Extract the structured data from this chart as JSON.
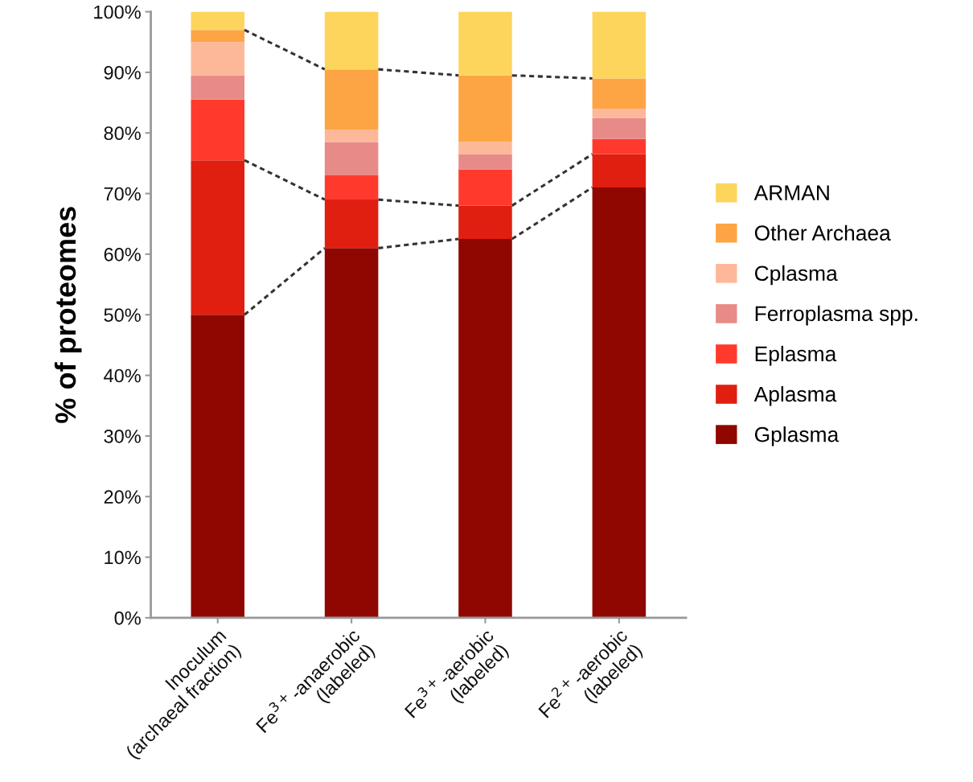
{
  "chart_data": {
    "type": "bar",
    "stacked": true,
    "ylabel": "% of proteomes",
    "categories": [
      "Inoculum\n(archaeal fraction)",
      "Fe$^{3+}$-anaerobic\n(labeled)",
      "Fe$^{3+}$-aerobic\n(labeled)",
      "Fe$^{2+}$-aerobic\n(labeled)"
    ],
    "series": [
      {
        "name": "Gplasma",
        "color": "#8f0700",
        "values": [
          50,
          61,
          62.5,
          71
        ]
      },
      {
        "name": "Aplasma",
        "color": "#e01f10",
        "values": [
          25.5,
          8,
          5.5,
          5.5
        ]
      },
      {
        "name": "Eplasma",
        "color": "#ff3a2d",
        "values": [
          10,
          4,
          6,
          2.5
        ]
      },
      {
        "name": "Ferroplasma spp.",
        "color": "#e88b88",
        "values": [
          4,
          5.5,
          2.5,
          3.5
        ]
      },
      {
        "name": "Cplasma",
        "color": "#fdb89a",
        "values": [
          5.5,
          2,
          2,
          1.5
        ]
      },
      {
        "name": "Other Archaea",
        "color": "#fda544",
        "values": [
          2,
          10,
          11,
          5
        ]
      },
      {
        "name": "ARMAN",
        "color": "#fdd55c",
        "values": [
          3,
          9.5,
          10.5,
          11
        ]
      }
    ],
    "ylim": [
      0,
      100
    ],
    "yticks": [
      {
        "value": 0,
        "label": "0%"
      },
      {
        "value": 10,
        "label": "10%"
      },
      {
        "value": 20,
        "label": "20%"
      },
      {
        "value": 30,
        "label": "30%"
      },
      {
        "value": 40,
        "label": "40%"
      },
      {
        "value": 50,
        "label": "50%"
      },
      {
        "value": 60,
        "label": "60%"
      },
      {
        "value": 70,
        "label": "70%"
      },
      {
        "value": 80,
        "label": "80%"
      },
      {
        "value": 90,
        "label": "90%"
      },
      {
        "value": 100,
        "label": "100%"
      }
    ],
    "legend": "right",
    "grid": false
  }
}
